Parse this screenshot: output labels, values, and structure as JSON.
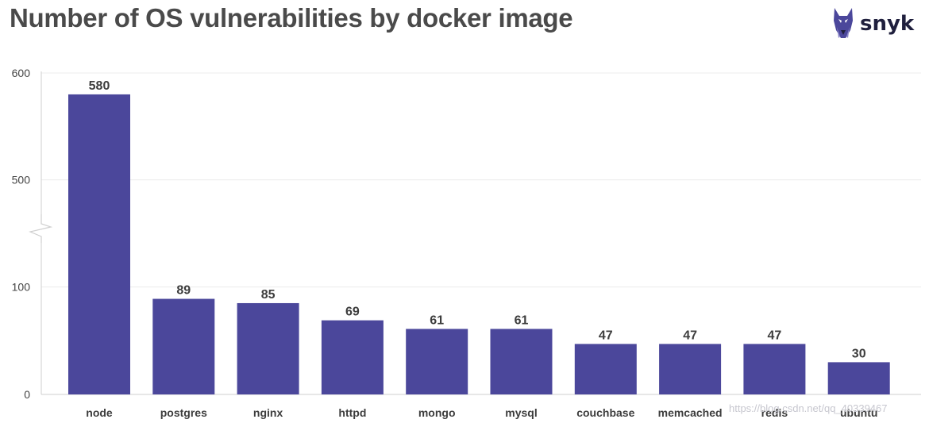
{
  "chart_data": {
    "type": "bar",
    "title": "Number of OS vulnerabilities by docker image",
    "xlabel": "",
    "ylabel": "",
    "categories": [
      "node",
      "postgres",
      "nginx",
      "httpd",
      "mongo",
      "mysql",
      "couchbase",
      "memcached",
      "redis",
      "ubuntu"
    ],
    "values": [
      580,
      89,
      85,
      69,
      61,
      61,
      47,
      47,
      47,
      30
    ],
    "data_labels": [
      "580",
      "89",
      "85",
      "69",
      "61",
      "61",
      "47",
      "47",
      "47",
      "30"
    ],
    "yticks": [
      0,
      100,
      500,
      600
    ],
    "ytick_labels": [
      "0",
      "100",
      "500",
      "600"
    ],
    "ylim": [
      0,
      600
    ],
    "axis_break": [
      150,
      450
    ],
    "grid": true,
    "bar_color": "#4b479b"
  },
  "brand": {
    "name": "snyk",
    "logo_icon": "doberman-icon",
    "color": "#1f1f3d"
  },
  "watermark": "https://blog.csdn.net/qq_40339467"
}
